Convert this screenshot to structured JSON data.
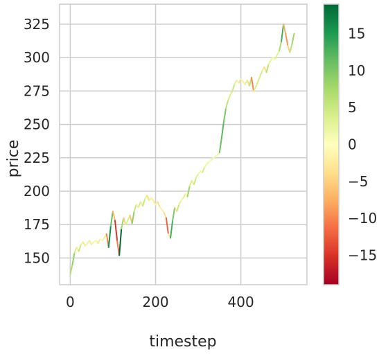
{
  "chart_data": {
    "type": "line",
    "xlabel": "timestep",
    "ylabel": "price",
    "xlim": [
      -25,
      555
    ],
    "ylim": [
      130,
      340
    ],
    "x_ticks": [
      0,
      200,
      400
    ],
    "y_ticks": [
      150,
      175,
      200,
      225,
      250,
      275,
      300,
      325
    ],
    "grid": true,
    "color_encoding": "change",
    "colorbar": {
      "colormap": "RdYlGn",
      "range": [
        -19,
        19
      ],
      "ticks": [
        -15,
        -10,
        -5,
        0,
        5,
        10,
        15
      ],
      "tick_labels": [
        "−15",
        "−10",
        "−5",
        "0",
        "5",
        "10",
        "15"
      ]
    },
    "x": [
      0,
      5,
      10,
      15,
      20,
      25,
      30,
      35,
      40,
      45,
      50,
      55,
      60,
      65,
      70,
      75,
      80,
      85,
      90,
      95,
      100,
      105,
      110,
      115,
      120,
      125,
      130,
      135,
      140,
      145,
      150,
      155,
      160,
      165,
      170,
      175,
      180,
      185,
      190,
      195,
      200,
      205,
      210,
      215,
      220,
      225,
      230,
      235,
      240,
      245,
      250,
      255,
      260,
      265,
      270,
      275,
      280,
      285,
      290,
      295,
      300,
      305,
      310,
      315,
      320,
      325,
      330,
      335,
      340,
      345,
      350,
      355,
      360,
      365,
      370,
      375,
      380,
      385,
      390,
      395,
      400,
      405,
      410,
      415,
      420,
      425,
      430,
      435,
      440,
      445,
      450,
      455,
      460,
      465,
      470,
      475,
      480,
      485,
      490,
      495,
      500,
      505,
      510,
      515,
      520,
      525
    ],
    "values": [
      138,
      145,
      154,
      158,
      155,
      160,
      162,
      159,
      161,
      163,
      160,
      162,
      163,
      161,
      164,
      163,
      165,
      168,
      158,
      174,
      185,
      178,
      163,
      152,
      172,
      180,
      175,
      178,
      182,
      176,
      185,
      190,
      188,
      192,
      189,
      194,
      197,
      193,
      195,
      193,
      190,
      192,
      188,
      186,
      184,
      180,
      168,
      165,
      178,
      188,
      185,
      190,
      193,
      195,
      198,
      196,
      204,
      208,
      205,
      210,
      213,
      215,
      214,
      218,
      220,
      222,
      223,
      225,
      226,
      227,
      229,
      240,
      252,
      262,
      268,
      272,
      275,
      280,
      283,
      281,
      284,
      282,
      280,
      283,
      279,
      285,
      275,
      278,
      282,
      286,
      290,
      293,
      289,
      295,
      298,
      300,
      299,
      302,
      305,
      312,
      325,
      318,
      309,
      304,
      310,
      318
    ],
    "changes": [
      0,
      7,
      9,
      4,
      -3,
      5,
      2,
      -3,
      2,
      2,
      -3,
      2,
      1,
      -2,
      3,
      -1,
      2,
      3,
      -10,
      16,
      11,
      -7,
      -15,
      -11,
      20,
      8,
      -5,
      3,
      4,
      -6,
      9,
      5,
      -2,
      4,
      -3,
      5,
      3,
      -4,
      2,
      -2,
      -3,
      2,
      -4,
      -2,
      -2,
      -4,
      -12,
      -3,
      13,
      10,
      -3,
      5,
      3,
      2,
      3,
      -2,
      8,
      4,
      -3,
      5,
      3,
      2,
      -1,
      4,
      2,
      2,
      1,
      2,
      1,
      1,
      2,
      11,
      12,
      10,
      6,
      4,
      3,
      5,
      3,
      -2,
      3,
      -2,
      -2,
      3,
      -4,
      6,
      -10,
      3,
      4,
      4,
      4,
      3,
      -4,
      6,
      3,
      2,
      -1,
      3,
      3,
      7,
      13,
      -7,
      -9,
      -5,
      6,
      8
    ]
  }
}
